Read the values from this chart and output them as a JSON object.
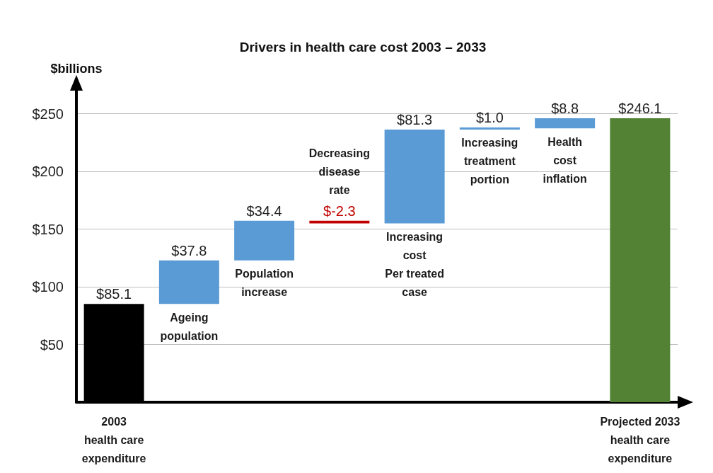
{
  "chart_data": {
    "type": "bar",
    "title": "Drivers in health care cost 2003 – 2033",
    "ylabel": "$billions",
    "categories": [
      "2003\nhealth care\nexpenditure",
      "Ageing\npopulation",
      "Population\nincrease",
      "Decreasing\ndisease\nrate",
      "Increasing\ncost\nPer treated\ncase",
      "Increasing\ntreatment\nportion",
      "Health\ncost\ninflation",
      "Projected 2033\nhealth care\nexpenditure"
    ],
    "values": [
      85.1,
      37.8,
      34.4,
      -2.3,
      81.3,
      1.0,
      8.8,
      246.1
    ],
    "base": [
      0,
      85.1,
      122.9,
      157.3,
      155.0,
      236.3,
      237.3,
      0
    ],
    "colors": [
      "#000000",
      "#5b9bd5",
      "#5b9bd5",
      "#c00000",
      "#5b9bd5",
      "#5b9bd5",
      "#5b9bd5",
      "#548235"
    ],
    "value_labels": [
      "$85.1",
      "$37.8",
      "$34.4",
      "$-2.3",
      "$81.3",
      "$1.0",
      "$8.8",
      "$246.1"
    ],
    "ylim": [
      0,
      270
    ],
    "yticks": [
      {
        "value": 0,
        "label": null
      },
      {
        "value": 50,
        "label": "$50"
      },
      {
        "value": 100,
        "label": "$100"
      },
      {
        "value": 150,
        "label": "$150"
      },
      {
        "value": 200,
        "label": "$200"
      },
      {
        "value": 250,
        "label": "$250"
      }
    ],
    "grid": "y"
  }
}
